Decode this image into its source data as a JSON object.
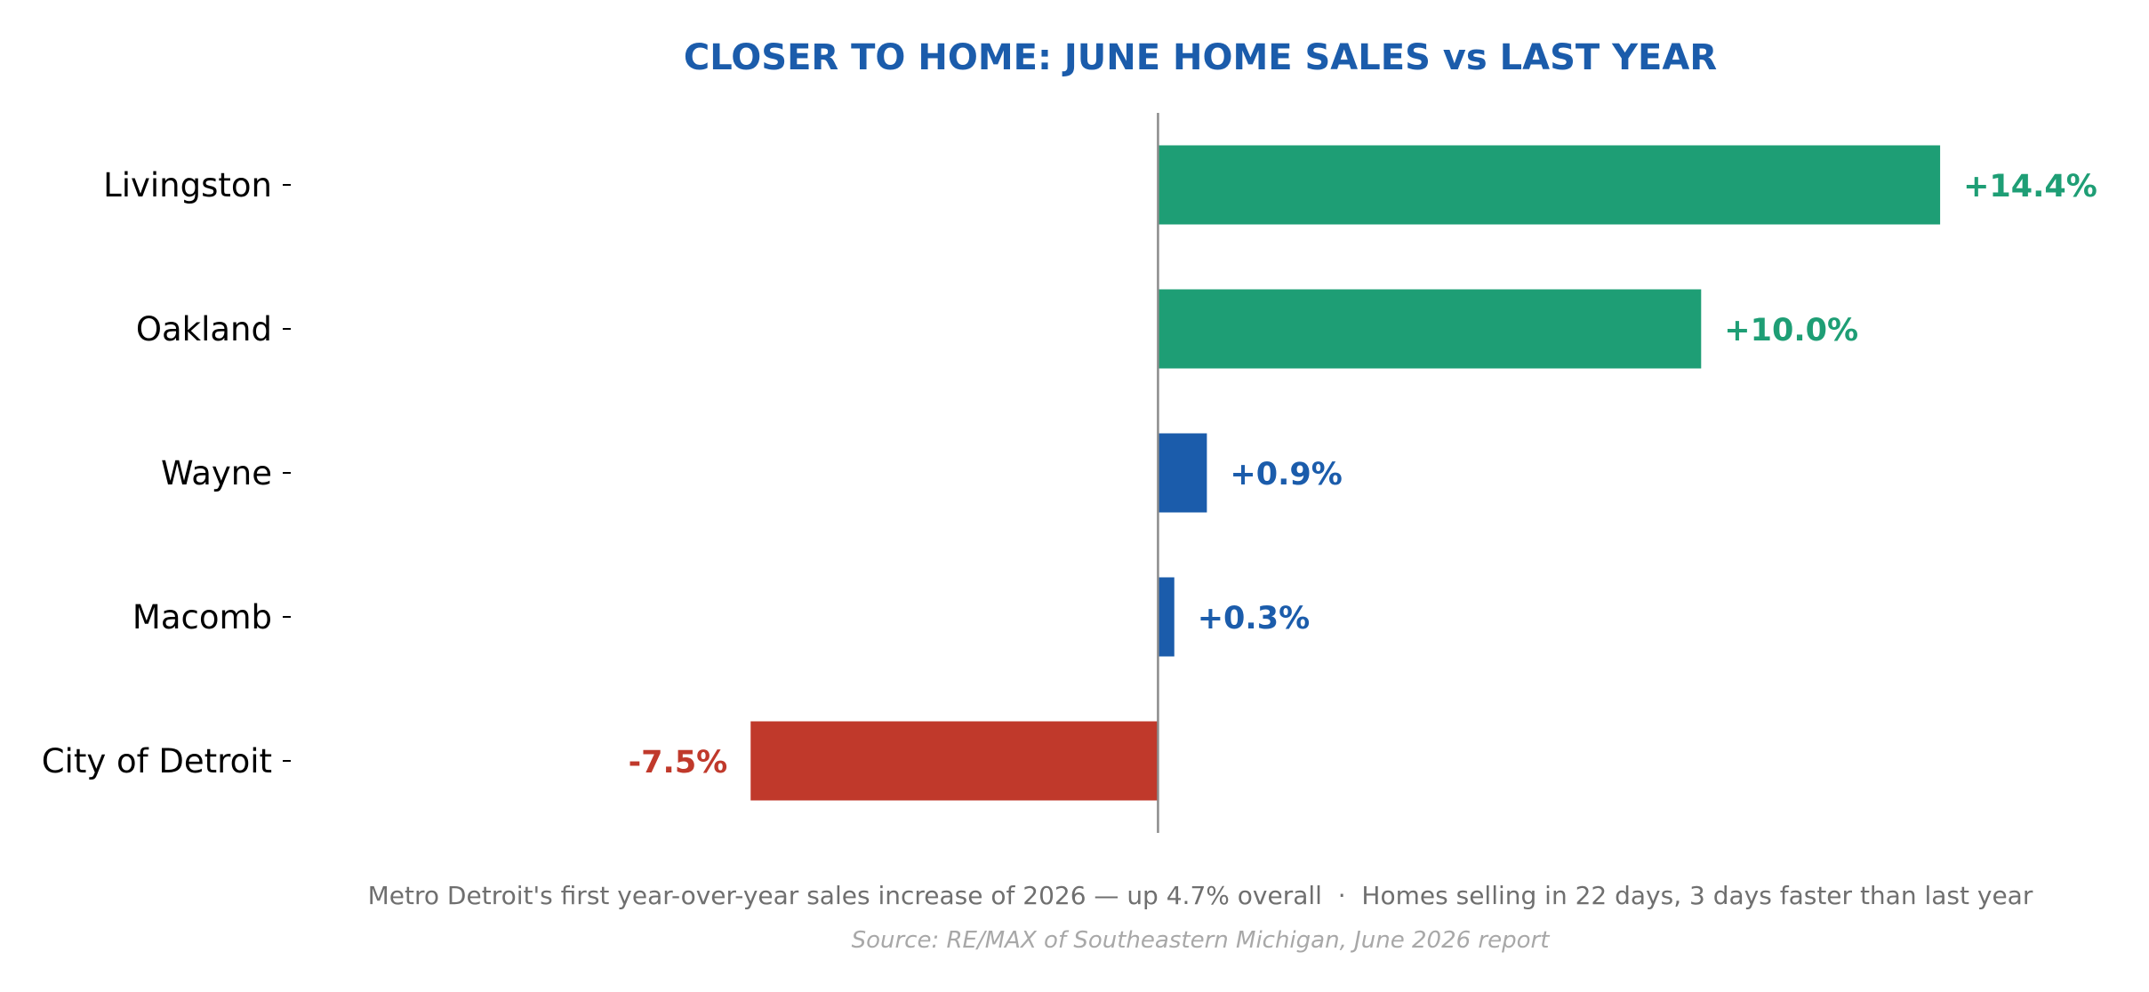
{
  "chart_data": {
    "type": "bar",
    "orientation": "horizontal",
    "title": "CLOSER TO HOME: JUNE HOME SALES vs LAST YEAR",
    "categories": [
      "Livingston",
      "Oakland",
      "Wayne",
      "Macomb",
      "City of Detroit"
    ],
    "values": [
      14.4,
      10.0,
      0.9,
      0.3,
      -7.5
    ],
    "value_labels": [
      "+14.4%",
      "+10.0%",
      "+0.9%",
      "+0.3%",
      "-7.5%"
    ],
    "bar_colors": [
      "#1e9e75",
      "#1e9e75",
      "#1b5cab",
      "#1b5cab",
      "#c0392b"
    ],
    "xlim": [
      -16,
      18
    ],
    "xlabel": "",
    "ylabel": "",
    "grid": false,
    "zero_line": true,
    "subtitle": "Metro Detroit's first year-over-year sales increase of 2026 — up 4.7% overall  ·  Homes selling in 22 days, 3 days faster than last year",
    "source": "Source: RE/MAX of Southeastern Michigan, June 2026 report"
  },
  "colors": {
    "title": "#1b5cab",
    "zero_line": "#8c8c8c",
    "tick": "#000000"
  }
}
